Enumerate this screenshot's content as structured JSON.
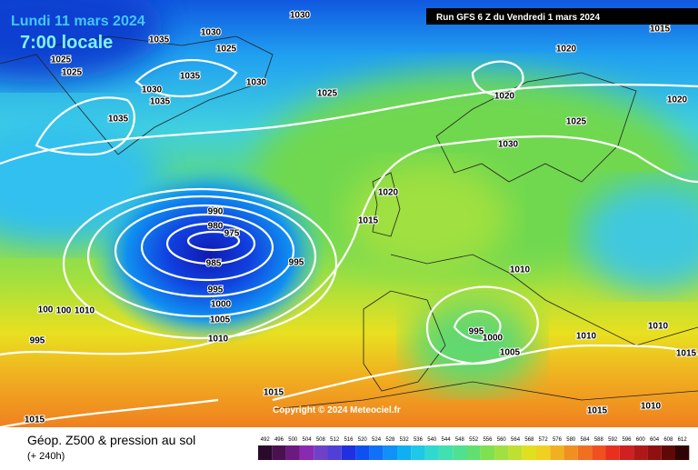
{
  "header": {
    "date": "Lundi 11 mars 2024",
    "time": "7:00 locale",
    "run": "Run GFS 6 Z du Vendredi 1 mars 2024"
  },
  "copyright": "Copyright © 2024 Meteociel.fr",
  "footer": {
    "title": "Géop. Z500 & pression au sol",
    "lead": "(+ 240h)"
  },
  "isobar_labels": [
    1030,
    1035,
    1030,
    1025,
    1025,
    1025,
    1035,
    1030,
    1030,
    1035,
    1025,
    1035,
    1020,
    1015,
    1020,
    1020,
    1025,
    1030,
    1020,
    1015,
    990,
    980,
    975,
    985,
    995,
    995,
    1000,
    1005,
    1010,
    1010,
    100,
    100,
    1010,
    995,
    995,
    1000,
    1005,
    1010,
    1010,
    1015,
    1015,
    1010,
    1015,
    1015
  ],
  "scale": {
    "values": [
      492,
      496,
      500,
      504,
      508,
      512,
      516,
      520,
      524,
      528,
      532,
      536,
      540,
      544,
      548,
      552,
      556,
      560,
      564,
      568,
      572,
      576,
      580,
      584,
      588,
      592,
      596,
      600,
      604,
      608,
      612
    ],
    "colors": [
      "#2a0a2a",
      "#4a1050",
      "#6a1a80",
      "#8a2ab0",
      "#7040c8",
      "#5040d8",
      "#2030e0",
      "#1050f0",
      "#1070f8",
      "#1090f8",
      "#10b0f0",
      "#20c8e8",
      "#30d8d0",
      "#40e0b0",
      "#50e090",
      "#60e070",
      "#80e050",
      "#a0e040",
      "#c0e030",
      "#e0e020",
      "#f0d020",
      "#f0b020",
      "#f09020",
      "#f07020",
      "#f05020",
      "#e83020",
      "#d02020",
      "#b01818",
      "#901010",
      "#600808",
      "#300404"
    ]
  }
}
